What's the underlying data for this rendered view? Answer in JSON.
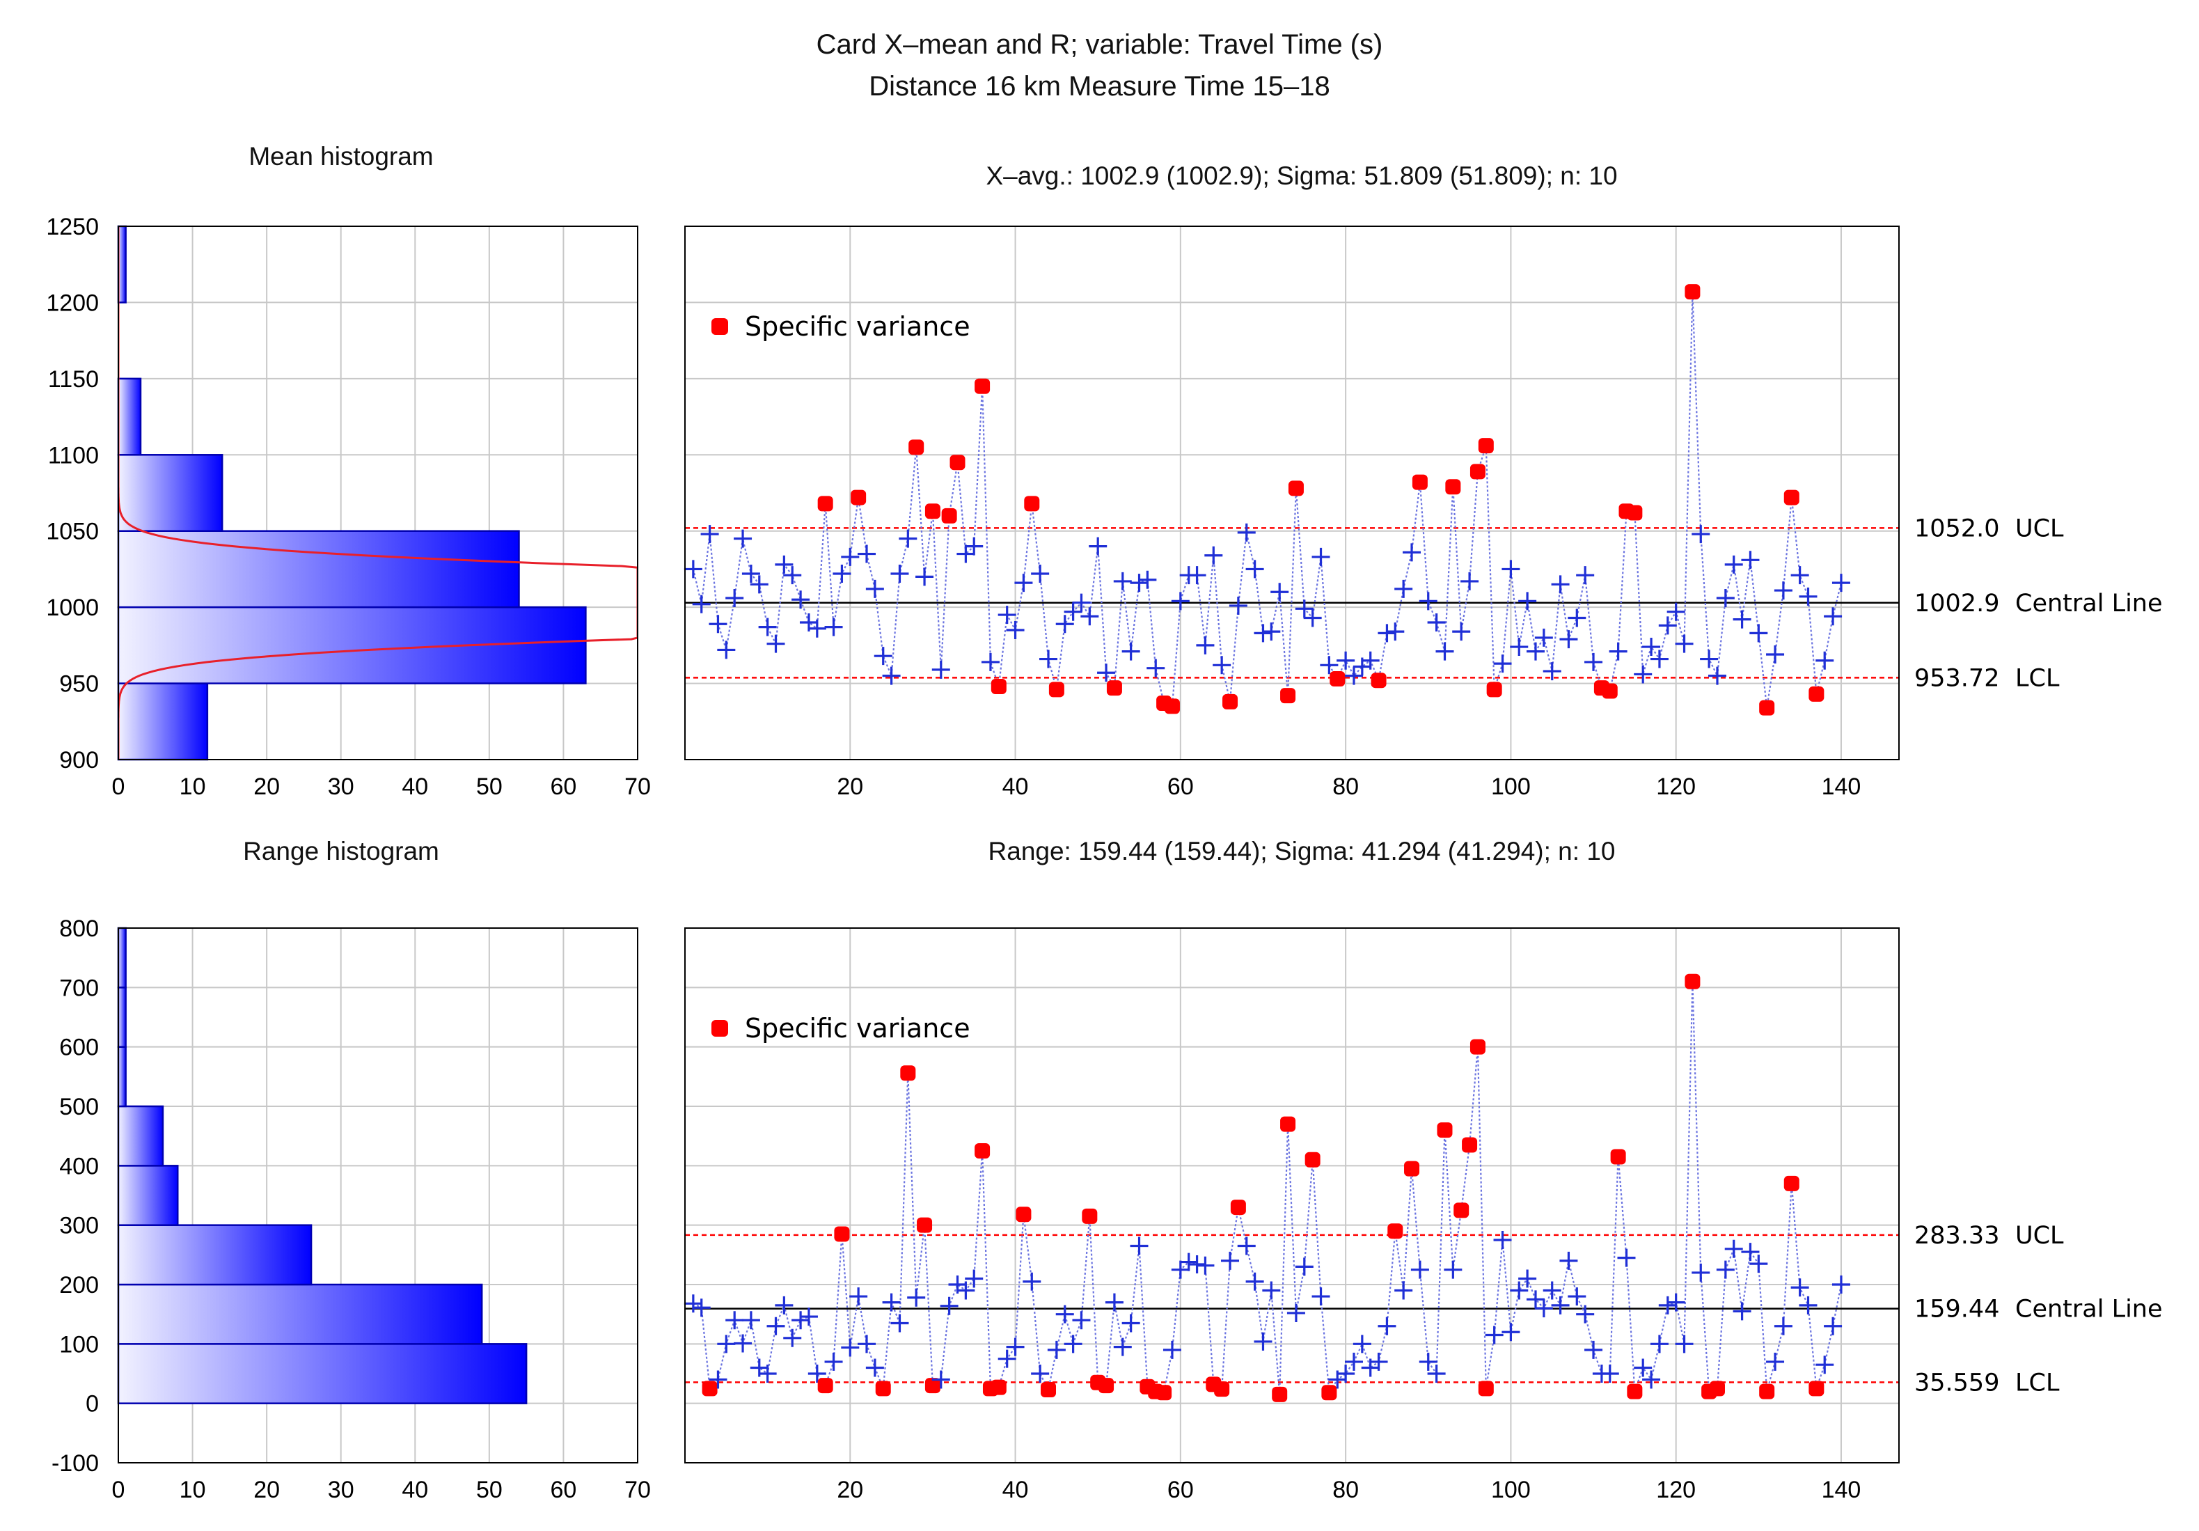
{
  "title_line1": "Card X–mean and R; variable: Travel Time (s)",
  "title_line2": "Distance 16 km Measure Time 15–18",
  "colors": {
    "point": "#1f2fd6",
    "line": "#6b74e0",
    "flag": "#ff0000",
    "limit": "#ff0000",
    "center": "#000000",
    "grid": "#c8c8c8",
    "hist_edge": "#0000b0"
  },
  "mean_histogram": {
    "title": "Mean histogram",
    "y_ticks": [
      "1250",
      "1200",
      "1150",
      "1100",
      "1050",
      "1000",
      "950",
      "900"
    ],
    "x_ticks": [
      "0",
      "10",
      "20",
      "30",
      "40",
      "50",
      "60",
      "70"
    ],
    "ylim": [
      900,
      1250
    ],
    "xlim": [
      0,
      70
    ],
    "bins": [
      {
        "lo": 900,
        "hi": 950,
        "count": 12
      },
      {
        "lo": 950,
        "hi": 1000,
        "count": 63
      },
      {
        "lo": 1000,
        "hi": 1050,
        "count": 54
      },
      {
        "lo": 1050,
        "hi": 1100,
        "count": 14
      },
      {
        "lo": 1100,
        "hi": 1150,
        "count": 3
      },
      {
        "lo": 1150,
        "hi": 1200,
        "count": 0
      },
      {
        "lo": 1200,
        "hi": 1250,
        "count": 1
      }
    ],
    "normal_curve": {
      "mean": 1002.9,
      "sigma": 16.4,
      "peak": 200
    }
  },
  "range_histogram": {
    "title": "Range histogram",
    "y_ticks": [
      "800",
      "700",
      "600",
      "500",
      "400",
      "300",
      "200",
      "100",
      "0",
      "-100"
    ],
    "x_ticks": [
      "0",
      "10",
      "20",
      "30",
      "40",
      "50",
      "60",
      "70"
    ],
    "ylim": [
      -100,
      800
    ],
    "xlim": [
      0,
      70
    ],
    "bins": [
      {
        "lo": 0,
        "hi": 100,
        "count": 55
      },
      {
        "lo": 100,
        "hi": 200,
        "count": 49
      },
      {
        "lo": 200,
        "hi": 300,
        "count": 26
      },
      {
        "lo": 300,
        "hi": 400,
        "count": 8
      },
      {
        "lo": 400,
        "hi": 500,
        "count": 6
      },
      {
        "lo": 500,
        "hi": 600,
        "count": 1
      },
      {
        "lo": 600,
        "hi": 700,
        "count": 1
      },
      {
        "lo": 700,
        "hi": 800,
        "count": 1
      }
    ]
  },
  "chart_data": [
    {
      "type": "line",
      "name": "X-mean control chart",
      "subtitle": "X–avg.: 1002.9 (1002.9); Sigma: 51.809 (51.809); n: 10",
      "legend": "Specific variance",
      "xlim": [
        0,
        147
      ],
      "ylim": [
        900,
        1250
      ],
      "x_ticks": [
        "20",
        "40",
        "60",
        "80",
        "100",
        "120",
        "140"
      ],
      "ucl": 1052.0,
      "center": 1002.9,
      "lcl": 953.72,
      "ucl_value": "1052.0",
      "ucl_label": "UCL",
      "center_value": "1002.9",
      "center_label": "Central Line",
      "lcl_value": "953.72",
      "lcl_label": "LCL",
      "values": [
        1025,
        1002,
        1048,
        989,
        972,
        1006,
        1045,
        1022,
        1015,
        987,
        976,
        1028,
        1021,
        1005,
        990,
        986,
        1068,
        987,
        1022,
        1033,
        1072,
        1035,
        1012,
        968,
        955,
        1022,
        1045,
        1105,
        1020,
        1063,
        959,
        1060,
        1095,
        1035,
        1040,
        1145,
        964,
        948,
        995,
        985,
        1016,
        1068,
        1022,
        966,
        946,
        989,
        997,
        1003,
        994,
        1040,
        957,
        947,
        1017,
        971,
        1016,
        1018,
        960,
        937,
        935,
        1004,
        1021,
        1021,
        975,
        1034,
        962,
        938,
        1001,
        1049,
        1025,
        983,
        984,
        1010,
        942,
        1078,
        999,
        993,
        1033,
        962,
        953,
        965,
        955,
        961,
        965,
        952,
        983,
        984,
        1012,
        1036,
        1082,
        1004,
        990,
        971,
        1079,
        984,
        1017,
        1089,
        1106,
        946,
        963,
        1025,
        974,
        1004,
        971,
        980,
        958,
        1015,
        979,
        993,
        1021,
        964,
        947,
        945,
        971,
        1063,
        1062,
        956,
        974,
        966,
        988,
        997,
        976,
        1207,
        1048,
        966,
        955,
        1006,
        1028,
        992,
        1031,
        983,
        934,
        969,
        1011,
        1072,
        1021,
        1007,
        943,
        965,
        994,
        1016
      ]
    },
    {
      "type": "line",
      "name": "R control chart",
      "subtitle": "Range: 159.44 (159.44); Sigma: 41.294 (41.294); n: 10",
      "legend": "Specific variance",
      "xlim": [
        0,
        147
      ],
      "ylim": [
        -100,
        800
      ],
      "x_ticks": [
        "20",
        "40",
        "60",
        "80",
        "100",
        "120",
        "140"
      ],
      "ucl": 283.33,
      "center": 159.44,
      "lcl": 35.559,
      "ucl_value": "283.33",
      "ucl_label": "UCL",
      "center_value": "159.44",
      "center_label": "Central Line",
      "lcl_value": "35.559",
      "lcl_label": "LCL",
      "values": [
        168,
        161,
        25,
        40,
        100,
        140,
        101,
        140,
        60,
        50,
        130,
        165,
        110,
        140,
        146,
        50,
        30,
        70,
        285,
        94,
        180,
        100,
        60,
        25,
        170,
        135,
        556,
        178,
        300,
        30,
        40,
        164,
        200,
        190,
        210,
        425,
        25,
        27,
        75,
        95,
        318,
        205,
        50,
        23,
        90,
        150,
        100,
        140,
        315,
        35,
        30,
        170,
        95,
        135,
        265,
        28,
        20,
        18,
        90,
        225,
        238,
        234,
        232,
        32,
        24,
        240,
        330,
        265,
        205,
        104,
        190,
        15,
        470,
        152,
        230,
        410,
        180,
        18,
        40,
        50,
        70,
        100,
        60,
        70,
        130,
        290,
        190,
        395,
        225,
        70,
        50,
        460,
        225,
        325,
        435,
        600,
        25,
        115,
        275,
        120,
        190,
        210,
        175,
        160,
        190,
        165,
        240,
        180,
        150,
        90,
        50,
        50,
        415,
        245,
        20,
        60,
        40,
        100,
        165,
        170,
        100,
        710,
        220,
        20,
        25,
        225,
        260,
        155,
        255,
        235,
        20,
        70,
        130,
        370,
        195,
        165,
        25,
        65,
        130,
        200
      ]
    }
  ]
}
